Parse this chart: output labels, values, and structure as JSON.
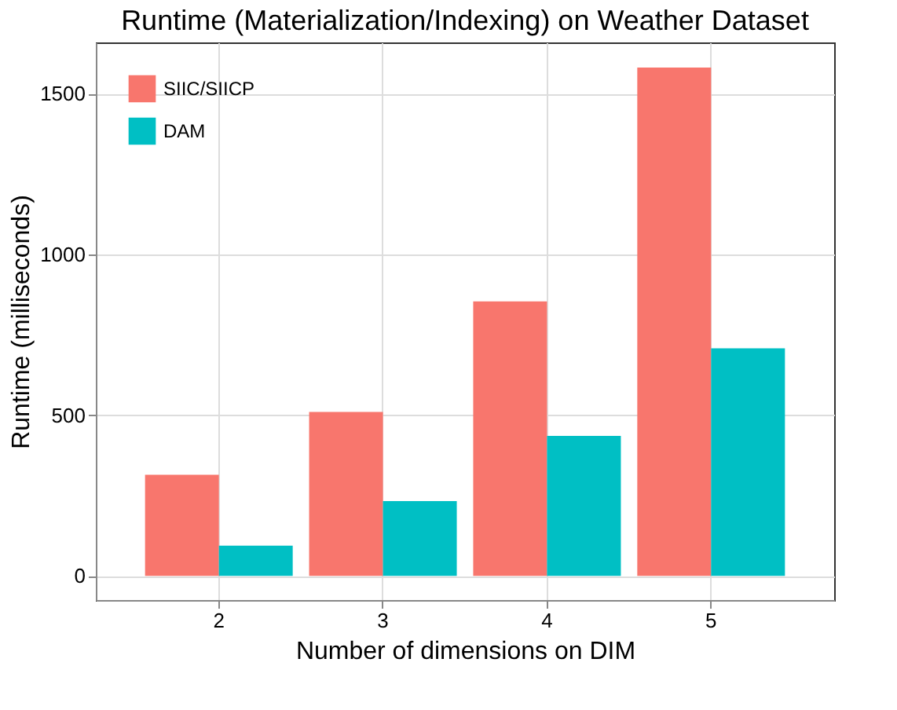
{
  "chart_data": {
    "type": "bar",
    "title": "Runtime (Materialization/Indexing) on Weather Dataset",
    "xlabel": "Number of dimensions on DIM",
    "ylabel": "Runtime (milliseconds)",
    "categories": [
      "2",
      "3",
      "4",
      "5"
    ],
    "series": [
      {
        "name": "SIIC/SIICP",
        "color": "#f8766d",
        "values": [
          315,
          510,
          854,
          1582
        ]
      },
      {
        "name": "DAM",
        "color": "#00bfc4",
        "values": [
          94,
          233,
          436,
          708
        ]
      }
    ],
    "ylim": [
      -75,
      1660
    ],
    "yticks": [
      0,
      500,
      1000,
      1500
    ],
    "grid": true,
    "legend": "top left"
  }
}
